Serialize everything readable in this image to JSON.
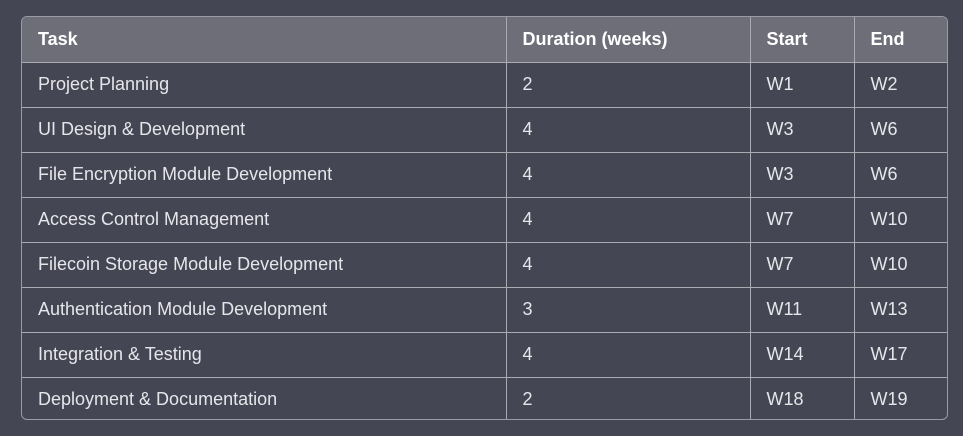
{
  "table": {
    "headers": [
      "Task",
      "Duration (weeks)",
      "Start",
      "End"
    ],
    "rows": [
      [
        "Project Planning",
        "2",
        "W1",
        "W2"
      ],
      [
        "UI Design & Development",
        "4",
        "W3",
        "W6"
      ],
      [
        "File Encryption Module Development",
        "4",
        "W3",
        "W6"
      ],
      [
        "Access Control Management",
        "4",
        "W7",
        "W10"
      ],
      [
        "Filecoin Storage Module Development",
        "4",
        "W7",
        "W10"
      ],
      [
        "Authentication Module Development",
        "3",
        "W11",
        "W13"
      ],
      [
        "Integration & Testing",
        "4",
        "W14",
        "W17"
      ],
      [
        "Deployment & Documentation",
        "2",
        "W18",
        "W19"
      ]
    ]
  }
}
